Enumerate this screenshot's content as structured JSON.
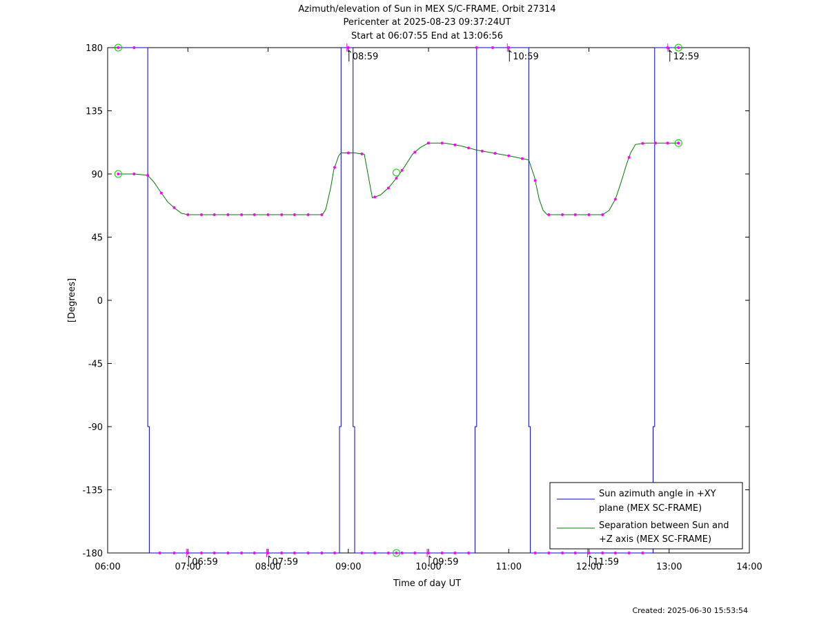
{
  "chart_data": {
    "type": "line",
    "title_lines": [
      "Azimuth/elevation of Sun in MEX S/C-FRAME.  Orbit 27314",
      "Pericenter at 2025-08-23 09:37:24UT",
      "Start at 06:07:55 End at 13:06:56"
    ],
    "xlabel": "Time of day UT",
    "ylabel": "[Degrees]",
    "xlim": [
      6.0,
      14.0
    ],
    "ylim": [
      -180,
      180
    ],
    "x_ticks": [
      {
        "v": 6,
        "label": "06:00"
      },
      {
        "v": 7,
        "label": "07:00"
      },
      {
        "v": 8,
        "label": "08:00"
      },
      {
        "v": 9,
        "label": "09:00"
      },
      {
        "v": 10,
        "label": "10:00"
      },
      {
        "v": 11,
        "label": "11:00"
      },
      {
        "v": 12,
        "label": "12:00"
      },
      {
        "v": 13,
        "label": "13:00"
      },
      {
        "v": 14,
        "label": "14:00"
      }
    ],
    "y_ticks": [
      {
        "v": 180,
        "label": "180"
      },
      {
        "v": 135,
        "label": "135"
      },
      {
        "v": 90,
        "label": "90"
      },
      {
        "v": 45,
        "label": "45"
      },
      {
        "v": 0,
        "label": "0"
      },
      {
        "v": -45,
        "label": "-45"
      },
      {
        "v": -90,
        "label": "-90"
      },
      {
        "v": -135,
        "label": "-135"
      },
      {
        "v": -180,
        "label": "-180"
      }
    ],
    "legend_position": "bottom-right",
    "series": [
      {
        "name_lines": [
          "Sun azimuth angle in +XY",
          "plane (MEX SC-FRAME)"
        ],
        "color": "#0000cc",
        "x": [
          6.132,
          6.5,
          6.5,
          6.52,
          6.52,
          8.89,
          8.89,
          8.91,
          8.91,
          9.06,
          9.06,
          9.08,
          9.08,
          10.58,
          10.58,
          10.6,
          10.6,
          11.25,
          11.25,
          11.27,
          11.27,
          12.8,
          12.8,
          12.82,
          12.82,
          13.116
        ],
        "values": [
          180,
          180,
          -90,
          -90,
          -180,
          -180,
          -90,
          -90,
          180,
          180,
          -90,
          -90,
          -180,
          -180,
          -90,
          -90,
          180,
          180,
          -90,
          -90,
          -180,
          -180,
          -90,
          -90,
          180,
          180
        ]
      },
      {
        "name_lines": [
          "Separation between Sun and",
          "+Z axis (MEX SC-FRAME)"
        ],
        "color": "#007700",
        "x": [
          6.132,
          6.33,
          6.5,
          6.58,
          6.65,
          6.75,
          6.85,
          6.92,
          7.0,
          7.1,
          7.5,
          8.0,
          8.6,
          8.68,
          8.72,
          8.78,
          8.82,
          8.88,
          8.91,
          9.0,
          9.08,
          9.2,
          9.3,
          9.4,
          9.5,
          9.6,
          9.7,
          9.8,
          9.9,
          10.0,
          10.2,
          10.4,
          10.6,
          10.8,
          11.0,
          11.25,
          11.32,
          11.38,
          11.43,
          11.48,
          11.55,
          11.7,
          12.0,
          12.17,
          12.25,
          12.33,
          12.4,
          12.47,
          12.52,
          12.58,
          12.7,
          12.9,
          13.116
        ],
        "values": [
          90,
          90,
          89,
          84,
          78,
          70,
          65,
          62,
          61,
          61,
          61,
          61,
          61,
          61,
          65,
          80,
          93,
          103,
          105,
          105,
          105,
          104,
          73,
          75,
          80,
          87,
          95,
          104,
          109,
          112,
          112,
          110,
          107,
          105,
          103,
          100,
          88,
          72,
          64,
          61,
          61,
          61,
          61,
          61,
          64,
          72,
          84,
          97,
          105,
          111,
          112,
          112,
          112
        ]
      }
    ]
  },
  "markers": {
    "color": "#ff00ff",
    "circle_color": "#00cc00",
    "azimuth_top_x": [
      6.132,
      6.33,
      9.0,
      10.6,
      10.8,
      11.0,
      12.98,
      13.116
    ],
    "azimuth_bottom_x": [
      6.65,
      6.83,
      7.0,
      7.17,
      7.33,
      7.5,
      7.67,
      7.83,
      8.0,
      8.17,
      8.33,
      8.5,
      8.67,
      8.83,
      9.17,
      9.33,
      9.5,
      9.6,
      9.67,
      9.83,
      10.0,
      10.17,
      10.33,
      10.5,
      11.33,
      11.5,
      11.67,
      11.83,
      12.0,
      12.17,
      12.33,
      12.5,
      12.67
    ],
    "separation_x": [
      6.132,
      6.33,
      6.5,
      6.67,
      6.83,
      7.0,
      7.17,
      7.33,
      7.5,
      7.67,
      7.83,
      8.0,
      8.17,
      8.33,
      8.5,
      8.67,
      8.83,
      9.0,
      9.17,
      9.33,
      9.5,
      9.6,
      9.67,
      9.83,
      10.0,
      10.17,
      10.33,
      10.5,
      10.67,
      10.83,
      11.0,
      11.17,
      11.33,
      11.5,
      11.67,
      11.83,
      12.0,
      12.17,
      12.33,
      12.5,
      12.67,
      12.83,
      12.98,
      13.116
    ],
    "circles": [
      {
        "x": 6.132,
        "y": 180
      },
      {
        "x": 6.132,
        "y": 90
      },
      {
        "x": 13.116,
        "y": 180
      },
      {
        "x": 13.116,
        "y": 112
      },
      {
        "x": 9.6,
        "y": 91
      },
      {
        "x": 9.6,
        "y": -180
      }
    ]
  },
  "annotations": [
    {
      "label": "06:59",
      "x": 6.983,
      "y": -180
    },
    {
      "label": "07:59",
      "x": 7.983,
      "y": -180
    },
    {
      "label": "08:59",
      "x": 8.983,
      "y": 180
    },
    {
      "label": "09:59",
      "x": 9.983,
      "y": -180
    },
    {
      "label": "10:59",
      "x": 10.983,
      "y": 180
    },
    {
      "label": "11:59",
      "x": 11.983,
      "y": -180
    },
    {
      "label": "12:59",
      "x": 12.983,
      "y": 180
    }
  ],
  "footer": {
    "created": "Created: 2025-06-30 15:53:54"
  }
}
